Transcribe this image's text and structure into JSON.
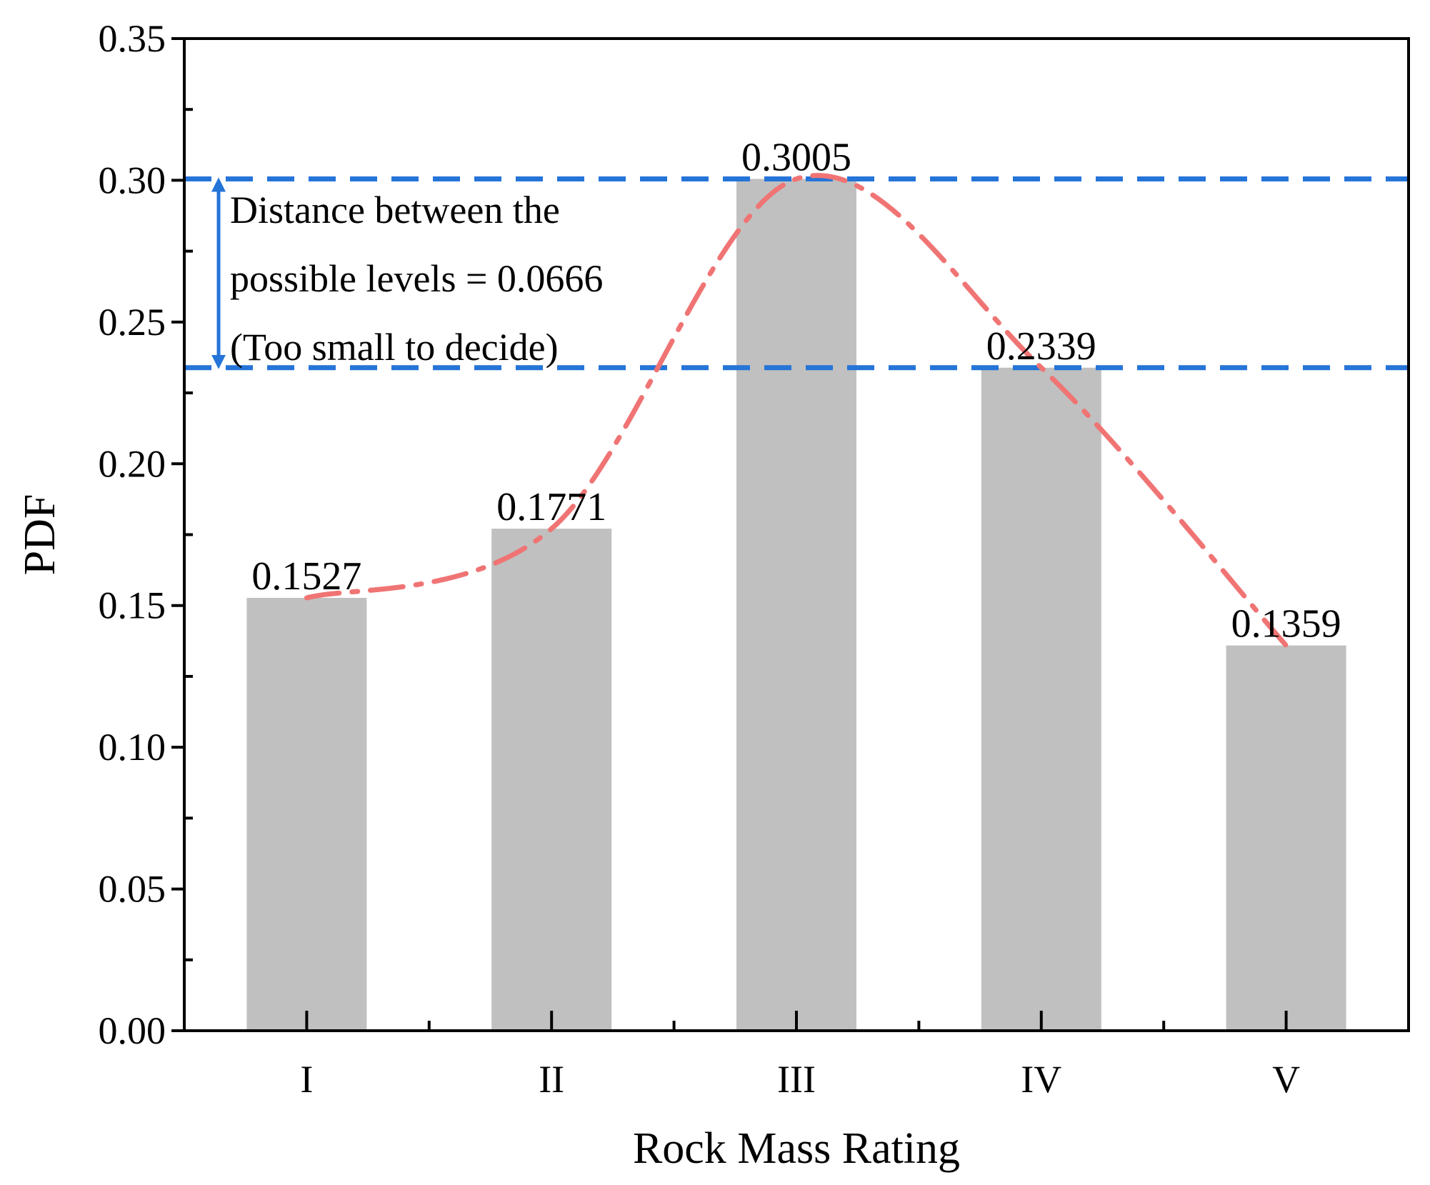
{
  "chart_data": {
    "type": "bar",
    "title": "",
    "xlabel": "Rock Mass Rating",
    "ylabel": "PDF",
    "categories": [
      "I",
      "II",
      "III",
      "IV",
      "V"
    ],
    "values": [
      0.1527,
      0.1771,
      0.3005,
      0.2339,
      0.1359
    ],
    "data_labels": [
      "0.1527",
      "0.1771",
      "0.3005",
      "0.2339",
      "0.1359"
    ],
    "ylim": [
      0,
      0.35
    ],
    "yticks": [
      0.0,
      0.05,
      0.1,
      0.15,
      0.2,
      0.25,
      0.3,
      0.35
    ],
    "ytick_labels": [
      "0.00",
      "0.05",
      "0.10",
      "0.15",
      "0.20",
      "0.25",
      "0.30",
      "0.35"
    ],
    "grid": false,
    "bar_color": "#c0c0c0",
    "trend_line": {
      "style": "dash-dot",
      "color": "#f07474",
      "points": [
        0.1527,
        0.1771,
        0.3005,
        0.2339,
        0.1359
      ]
    },
    "reference_lines": {
      "color": "#2574d8",
      "style": "dashed",
      "values": [
        0.3005,
        0.2339
      ]
    },
    "annotation": {
      "lines": [
        "Distance between the",
        "possible levels = 0.0666",
        "(Too small to decide)"
      ],
      "from": 0.3005,
      "to": 0.2339,
      "arrow_color": "#2574d8"
    }
  }
}
